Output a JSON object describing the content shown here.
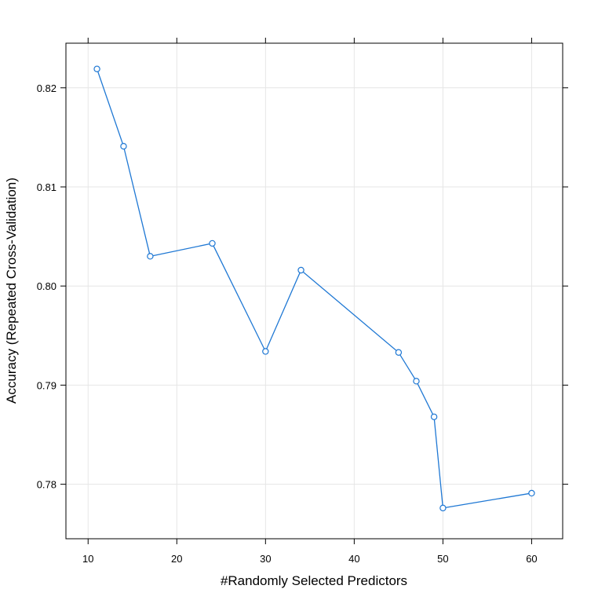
{
  "chart_data": {
    "type": "line",
    "title": "",
    "xlabel": "#Randomly Selected Predictors",
    "ylabel": "Accuracy (Repeated Cross-Validation)",
    "x": [
      11,
      14,
      17,
      24,
      30,
      34,
      45,
      47,
      49,
      50,
      60
    ],
    "series": [
      {
        "values": [
          0.8219,
          0.8141,
          0.803,
          0.8043,
          0.7934,
          0.8016,
          0.7933,
          0.7904,
          0.7868,
          0.7776,
          0.7791
        ],
        "color": "#1f78d4"
      }
    ],
    "xlim": [
      7.5,
      63.5
    ],
    "ylim": [
      0.7745,
      0.8245
    ],
    "xticks": [
      10,
      20,
      30,
      40,
      50,
      60
    ],
    "xtick_labels": [
      "10",
      "20",
      "30",
      "40",
      "50",
      "60"
    ],
    "yticks": [
      0.78,
      0.79,
      0.8,
      0.81,
      0.82
    ],
    "ytick_labels": [
      "0.78",
      "0.79",
      "0.80",
      "0.81",
      "0.82"
    ],
    "grid": true,
    "legend": "none",
    "colors": {
      "line": "#1f78d4",
      "grid": "#e6e6e6",
      "frame": "#000000"
    }
  }
}
